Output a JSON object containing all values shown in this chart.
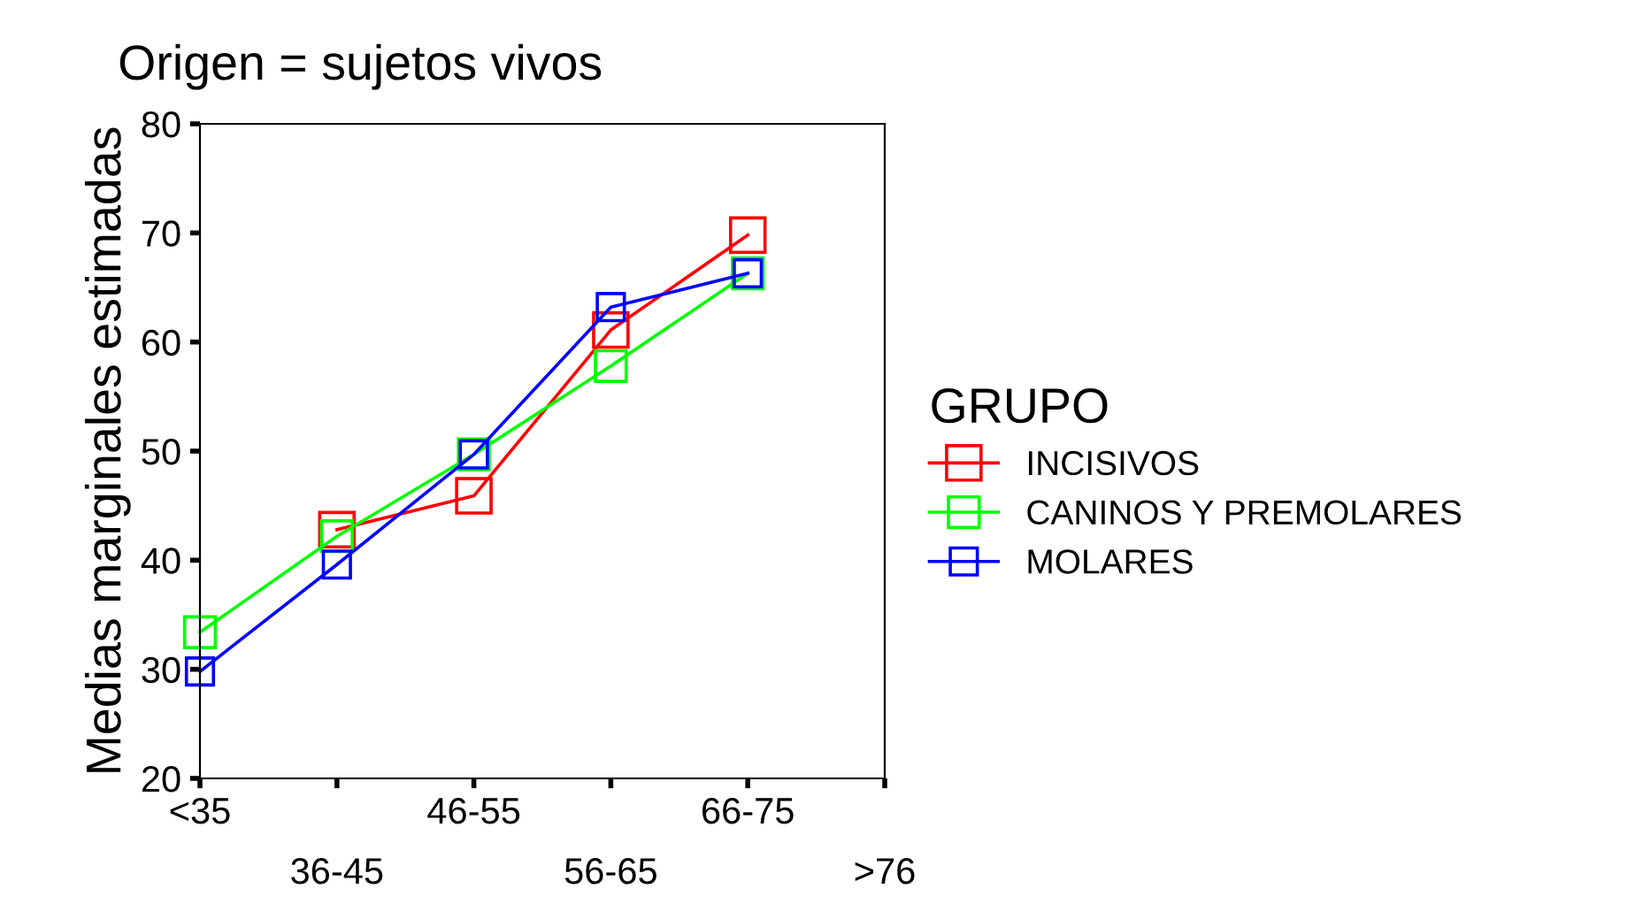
{
  "chart_data": {
    "type": "line",
    "title": "Origen = sujetos vivos",
    "ylabel": "Medias marginales estimadas",
    "legend_title": "GRUPO",
    "categories": [
      "<35",
      "36-45",
      "46-55",
      "56-65",
      "66-75",
      ">76"
    ],
    "series": [
      {
        "name": "INCISIVOS",
        "color": "#ff0000",
        "values": [
          null,
          42.8,
          45.9,
          61.1,
          69.8,
          null
        ]
      },
      {
        "name": "CANINOS Y PREMOLARES",
        "color": "#00ff00",
        "values": [
          33.4,
          42.2,
          49.7,
          57.8,
          66.3,
          null
        ]
      },
      {
        "name": "MOLARES",
        "color": "#0000ff",
        "values": [
          29.8,
          39.6,
          49.7,
          63.2,
          66.3,
          null
        ]
      }
    ],
    "ylim": [
      20,
      80
    ],
    "yticks": [
      20,
      30,
      40,
      50,
      60,
      70,
      80
    ],
    "grid": false,
    "legend": "right",
    "marker": "square",
    "line_style": "solid"
  }
}
